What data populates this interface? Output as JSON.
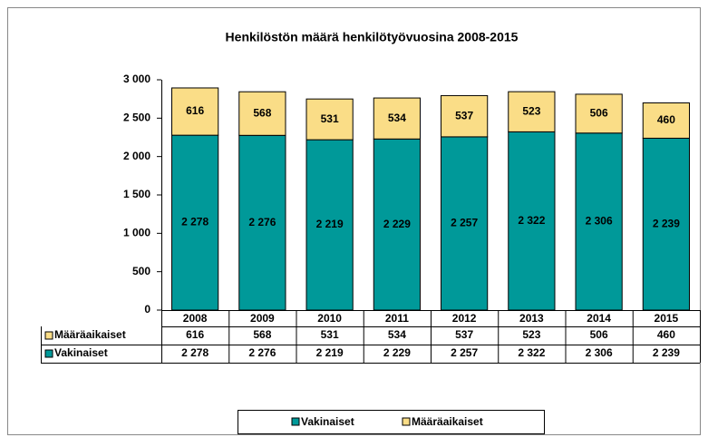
{
  "chart_data": {
    "type": "stacked_bar",
    "title": "Henkilöstön määrä henkilötyövuosina 2008-2015",
    "categories": [
      "2008",
      "2009",
      "2010",
      "2011",
      "2012",
      "2013",
      "2014",
      "2015"
    ],
    "series": [
      {
        "name": "Vakinaiset",
        "color": "#009999",
        "values": [
          2278,
          2276,
          2219,
          2229,
          2257,
          2322,
          2306,
          2239
        ],
        "value_labels": [
          "2 278",
          "2 276",
          "2 219",
          "2 229",
          "2 257",
          "2 322",
          "2 306",
          "2 239"
        ]
      },
      {
        "name": "Määräaikaiset",
        "color": "#FADD87",
        "values": [
          616,
          568,
          531,
          534,
          537,
          523,
          506,
          460
        ]
      }
    ],
    "ylim": [
      0,
      3000
    ],
    "yticks": [
      0,
      500,
      {
        "value": 1000,
        "label": "1 000"
      },
      {
        "value": 1500,
        "label": "1 500"
      },
      {
        "value": 2000,
        "label": "2 000"
      },
      {
        "value": 2500,
        "label": "2 500"
      },
      {
        "value": 3000,
        "label": "3 000"
      }
    ],
    "grid": false,
    "legend": "bottom",
    "data_table": true
  }
}
